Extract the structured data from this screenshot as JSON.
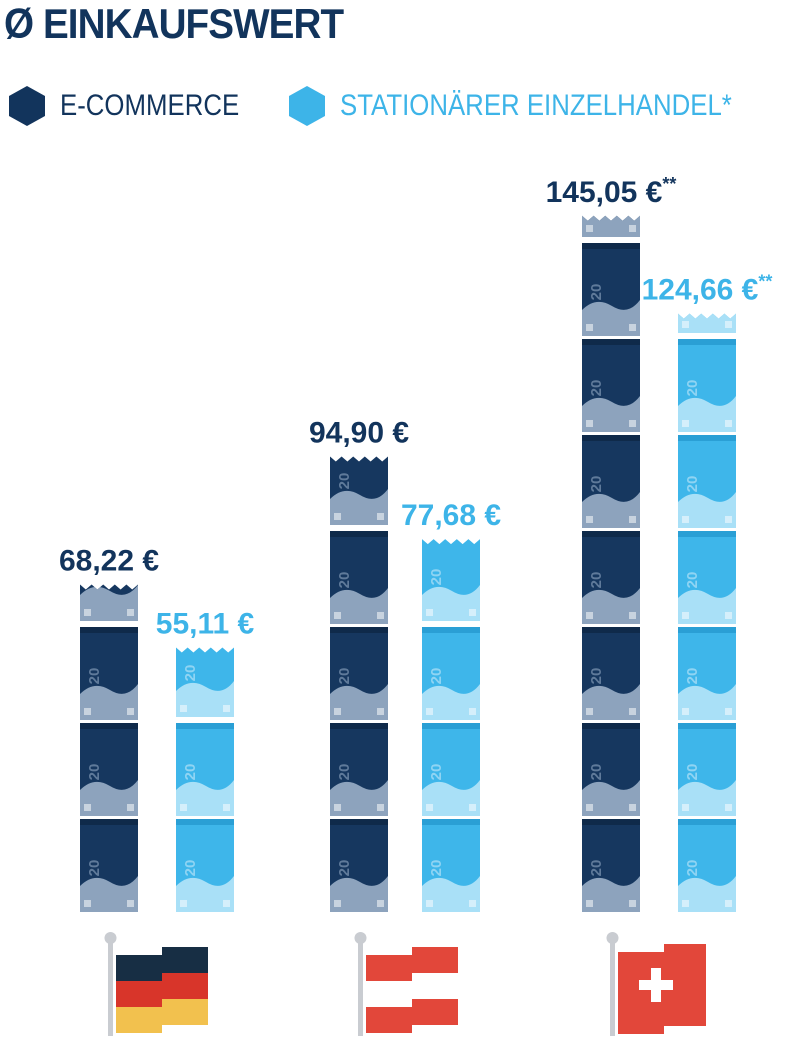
{
  "title": "Ø EINKAUFSWERT",
  "legend": [
    {
      "label": "E-COMMERCE",
      "color": "#12345c"
    },
    {
      "label": "STATIONÄRER EINZELHANDEL*",
      "color": "#3db4e8"
    }
  ],
  "chart_data": {
    "type": "bar",
    "title": "Ø EINKAUFSWERT",
    "categories": [
      "Deutschland",
      "Österreich",
      "Schweiz"
    ],
    "category_icons": [
      "germany-flag",
      "austria-flag",
      "switzerland-flag"
    ],
    "series": [
      {
        "name": "E-COMMERCE",
        "color": "#12345c",
        "values": [
          68.22,
          94.9,
          145.05
        ],
        "value_labels": [
          "68,22 €",
          "94,90 €",
          "145,05 €"
        ],
        "label_suffixes": [
          "",
          "",
          "**"
        ]
      },
      {
        "name": "STATIONÄRER EINZELHANDEL*",
        "color": "#3db4e8",
        "values": [
          55.11,
          77.68,
          124.66
        ],
        "value_labels": [
          "55,11 €",
          "77,68 €",
          "124,66 €"
        ],
        "label_suffixes": [
          "",
          "",
          "**"
        ]
      }
    ],
    "unit_pictogram": "20-euro-banknote",
    "unit_value": 20,
    "banknote_label": "20",
    "ylim": [
      0,
      145.05
    ],
    "grid": false,
    "legend_position": "top-left"
  }
}
